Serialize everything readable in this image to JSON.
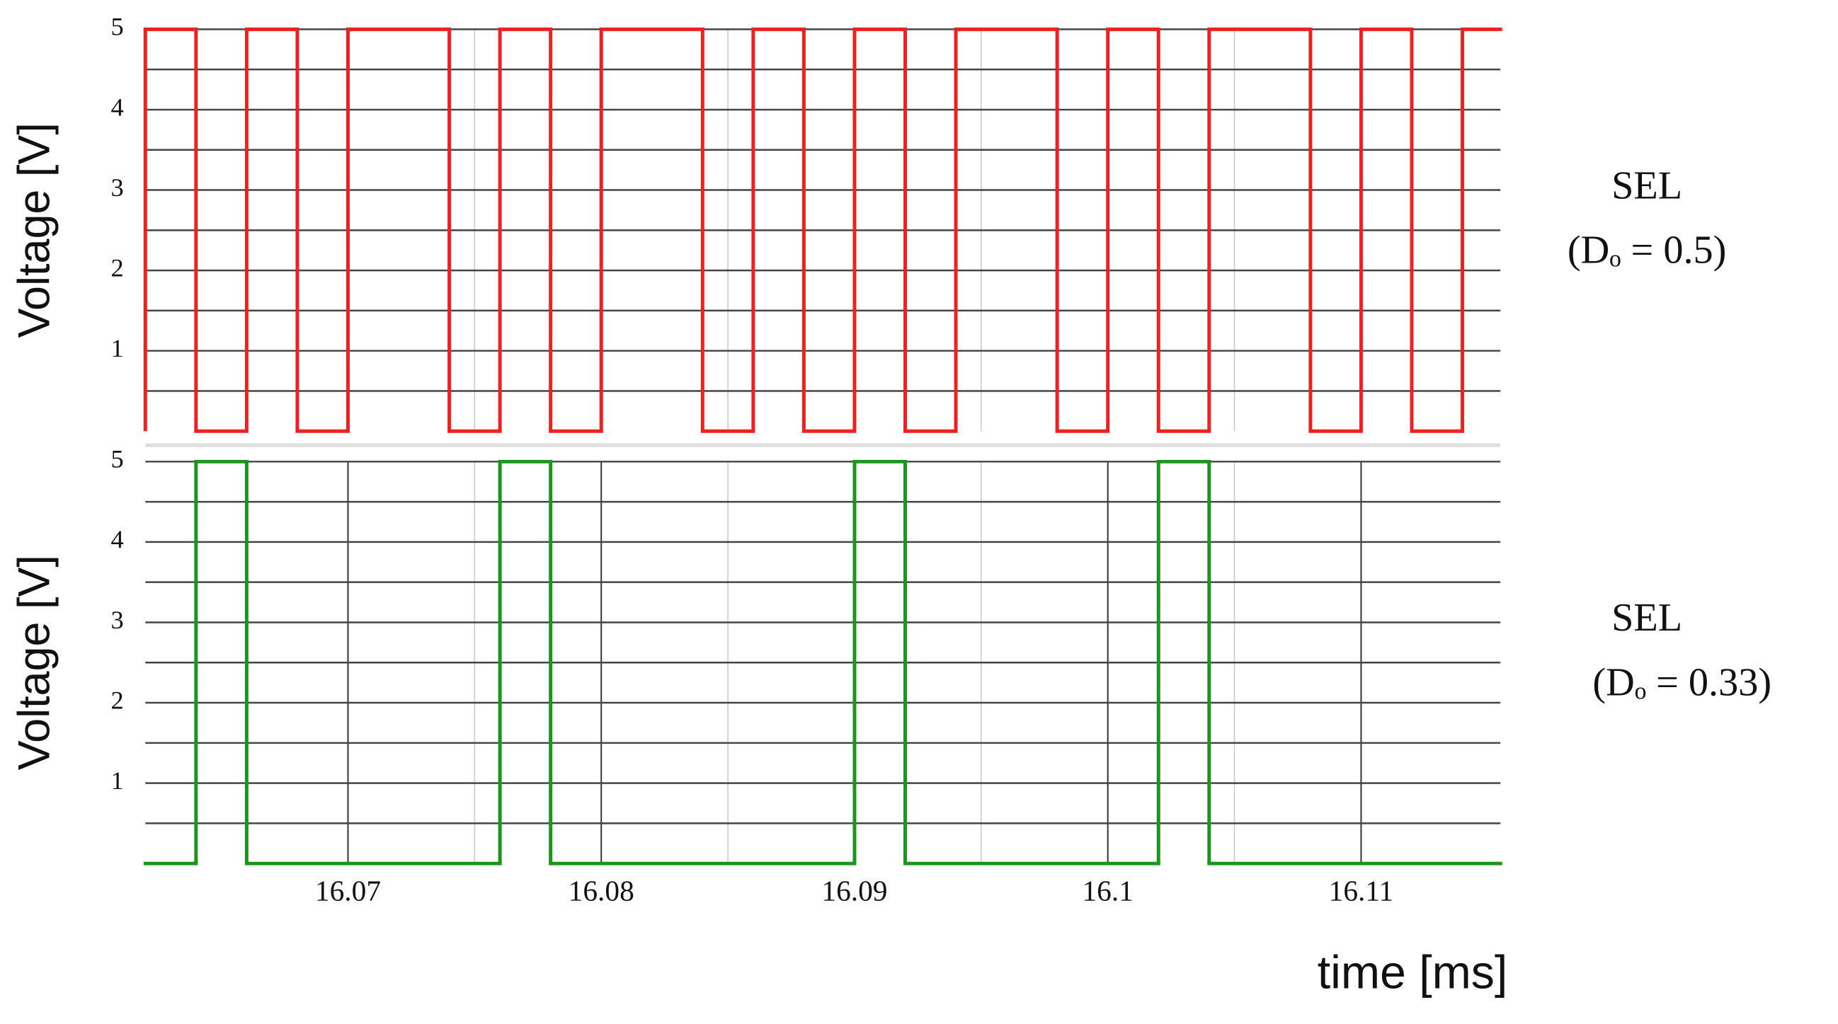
{
  "chart_data": [
    {
      "type": "line",
      "drawstyle": "steps-post",
      "ylabel": "Voltage [V]",
      "annotation": [
        "SEL",
        "(Dₒ = 0.5)"
      ],
      "x": [
        16.062,
        16.064,
        16.066,
        16.068,
        16.07,
        16.074,
        16.076,
        16.078,
        16.08,
        16.084,
        16.086,
        16.088,
        16.09,
        16.092,
        16.094,
        16.098,
        16.1,
        16.102,
        16.104,
        16.108,
        16.11,
        16.112,
        16.114,
        16.1155
      ],
      "series": [
        {
          "color": "#f02020",
          "values": [
            5,
            0,
            5,
            0,
            5,
            0,
            5,
            0,
            5,
            0,
            5,
            0,
            5,
            0,
            5,
            0,
            5,
            0,
            5,
            0,
            5,
            0,
            5,
            5
          ]
        }
      ],
      "xlim": [
        16.062,
        16.1155
      ],
      "ylim": [
        0,
        5
      ],
      "yticks": [
        1,
        2,
        3,
        4,
        5
      ],
      "grid": true
    },
    {
      "type": "line",
      "drawstyle": "steps-post",
      "ylabel": "Voltage [V]",
      "xlabel": "time [ms]",
      "annotation": [
        "SEL",
        "(Dₒ = 0.33)"
      ],
      "x": [
        16.062,
        16.064,
        16.066,
        16.076,
        16.078,
        16.09,
        16.092,
        16.102,
        16.104,
        16.1155
      ],
      "series": [
        {
          "color": "#1a961a",
          "values": [
            0,
            5,
            0,
            5,
            0,
            5,
            0,
            5,
            0,
            0
          ]
        }
      ],
      "xlim": [
        16.062,
        16.1155
      ],
      "xticks": [
        16.07,
        16.08,
        16.09,
        16.1,
        16.11
      ],
      "ylim": [
        0,
        5
      ],
      "yticks": [
        1,
        2,
        3,
        4,
        5
      ],
      "grid": true
    }
  ]
}
